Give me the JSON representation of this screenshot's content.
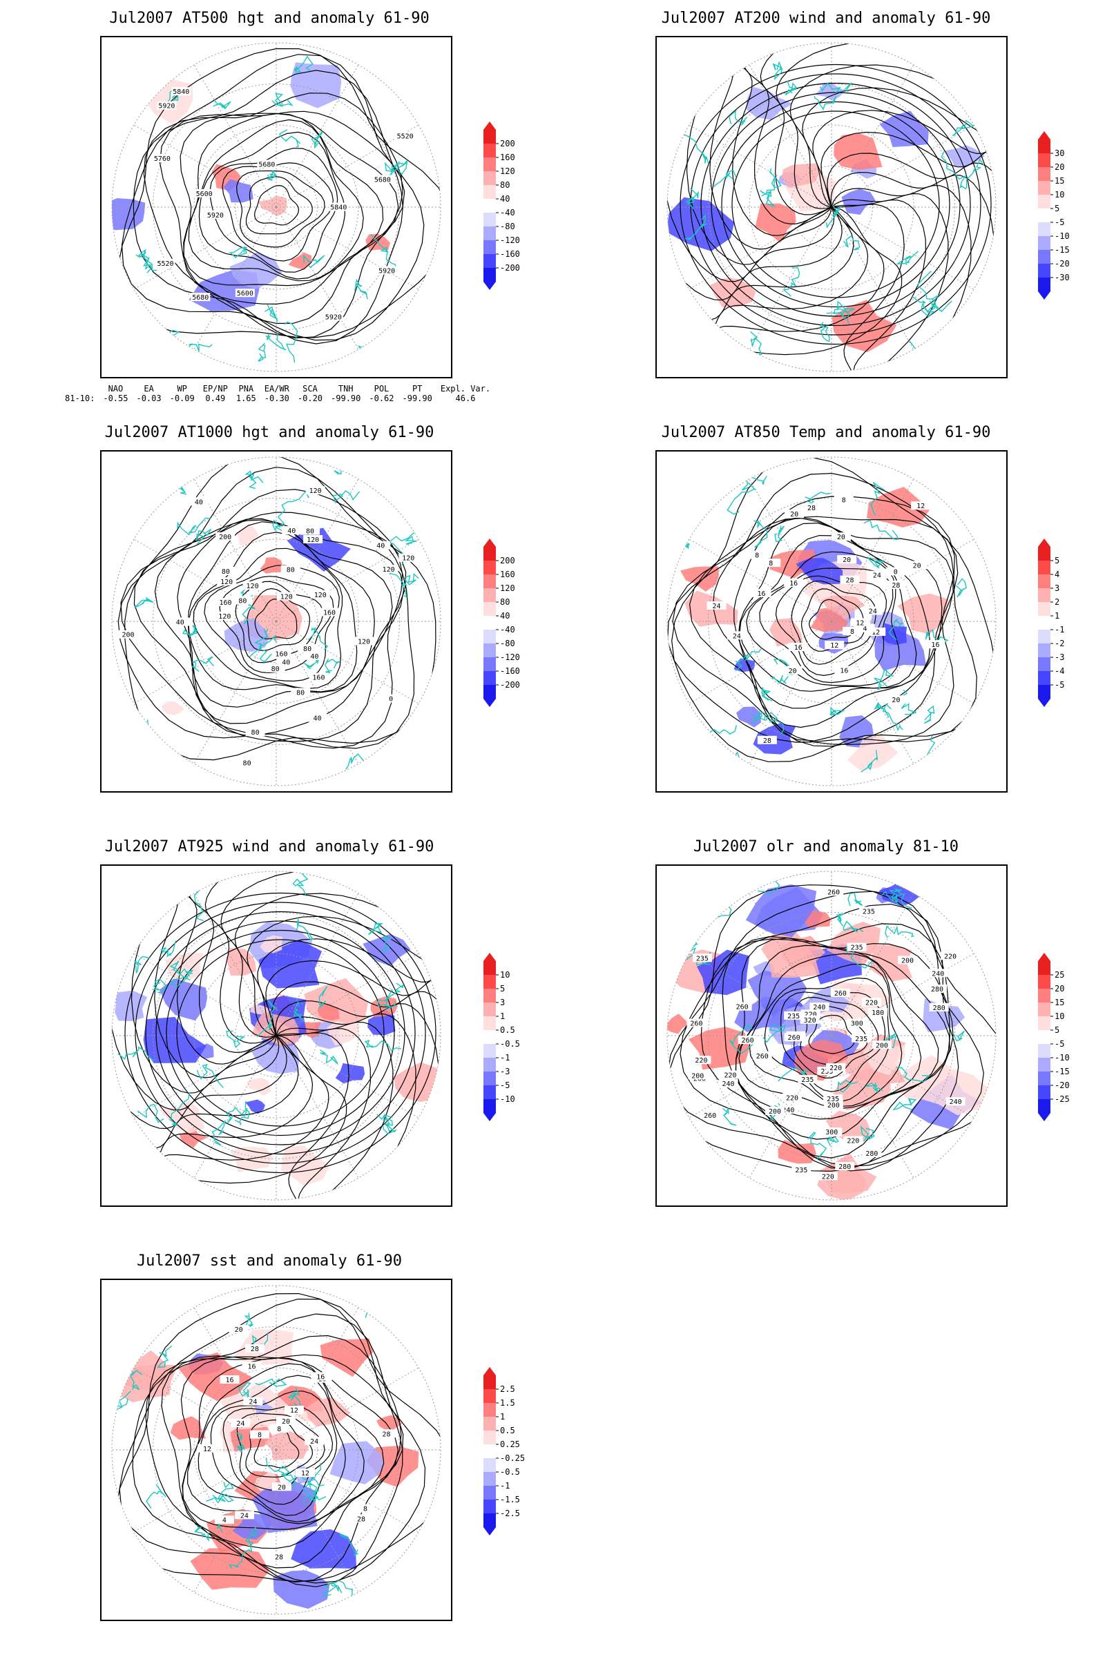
{
  "panels": [
    {
      "id": "p1",
      "title": "Jul2007 AT500 hgt and anomaly 61-90",
      "contour_labels": [
        "5920",
        "5680",
        "5680",
        "5600",
        "5920",
        "5520",
        "5520",
        "5840",
        "5920",
        "5600",
        "5680",
        "5760",
        "5840",
        "5920"
      ],
      "colorbar": {
        "ticks": [
          "200",
          "160",
          "120",
          "80",
          "40",
          "-40",
          "-80",
          "-120",
          "-160",
          "-200"
        ],
        "colors": [
          "#e8201f",
          "#ff4a4a",
          "#ff7e7e",
          "#ffb0b0",
          "#ffdede",
          "#ffffff",
          "#dcdcff",
          "#aaaaff",
          "#7878ff",
          "#4646ff",
          "#1a1aee"
        ]
      }
    },
    {
      "id": "p2",
      "title": "Jul2007 AT200 wind and anomaly 61-90",
      "contour_labels": [],
      "colorbar": {
        "ticks": [
          "30",
          "20",
          "15",
          "10",
          "5",
          "-5",
          "-10",
          "-15",
          "-20",
          "-30"
        ],
        "colors": [
          "#e8201f",
          "#ff4a4a",
          "#ff7e7e",
          "#ffb0b0",
          "#ffdede",
          "#ffffff",
          "#dcdcff",
          "#aaaaff",
          "#7878ff",
          "#4646ff",
          "#1a1aee"
        ]
      }
    },
    {
      "id": "p3",
      "title": "Jul2007 AT1000 hgt and anomaly 61-90",
      "contour_labels": [
        "80",
        "120",
        "120",
        "80",
        "80",
        "160",
        "200",
        "120",
        "160",
        "120",
        "80",
        "40",
        "80",
        "40",
        "120",
        "80",
        "40",
        "40",
        "80",
        "120",
        "160",
        "40",
        "40",
        "120",
        "0",
        "200",
        "160",
        "40",
        "80",
        "120",
        "80",
        "120",
        "120"
      ],
      "colorbar": {
        "ticks": [
          "200",
          "160",
          "120",
          "80",
          "40",
          "-40",
          "-80",
          "-120",
          "-160",
          "-200"
        ],
        "colors": [
          "#e8201f",
          "#ff4a4a",
          "#ff7e7e",
          "#ffb0b0",
          "#ffdede",
          "#ffffff",
          "#dcdcff",
          "#aaaaff",
          "#7878ff",
          "#4646ff",
          "#1a1aee"
        ]
      }
    },
    {
      "id": "p4",
      "title": "Jul2007 AT850 Temp and anomaly 61-90",
      "contour_labels": [
        "16",
        "12",
        "20",
        "8",
        "16",
        "8",
        "20",
        "24",
        "28",
        "8",
        "12",
        "0",
        "28",
        "20",
        "4",
        "12",
        "24",
        "28",
        "20",
        "8",
        "12",
        "16",
        "20",
        "24",
        "28",
        "16",
        "20",
        "24",
        "16"
      ],
      "colorbar": {
        "ticks": [
          "5",
          "4",
          "3",
          "2",
          "1",
          "-1",
          "-2",
          "-3",
          "-4",
          "-5"
        ],
        "colors": [
          "#e8201f",
          "#ff4a4a",
          "#ff7e7e",
          "#ffb0b0",
          "#ffdede",
          "#ffffff",
          "#dcdcff",
          "#aaaaff",
          "#7878ff",
          "#4646ff",
          "#1a1aee"
        ]
      }
    },
    {
      "id": "p5",
      "title": "Jul2007 AT925 wind and anomaly 61-90",
      "contour_labels": [],
      "colorbar": {
        "ticks": [
          "10",
          "5",
          "3",
          "1",
          "0.5",
          "-0.5",
          "-1",
          "-3",
          "-5",
          "-10"
        ],
        "colors": [
          "#e8201f",
          "#ff4a4a",
          "#ff7e7e",
          "#ffb0b0",
          "#ffdede",
          "#ffffff",
          "#dcdcff",
          "#aaaaff",
          "#7878ff",
          "#4646ff",
          "#1a1aee"
        ]
      }
    },
    {
      "id": "p6",
      "title": "Jul2007 olr and anomaly 81-10",
      "contour_labels": [
        "280",
        "260",
        "235",
        "220",
        "280",
        "260",
        "240",
        "200",
        "220",
        "235",
        "240",
        "260",
        "280",
        "260",
        "200",
        "220",
        "235",
        "260",
        "240",
        "220",
        "235",
        "220",
        "200",
        "235",
        "235",
        "260",
        "240",
        "220",
        "200",
        "180",
        "200",
        "220",
        "235",
        "260",
        "280",
        "300",
        "320",
        "220",
        "235",
        "260",
        "240",
        "280",
        "300",
        "260",
        "240",
        "220",
        "235"
      ],
      "colorbar": {
        "ticks": [
          "25",
          "20",
          "15",
          "10",
          "5",
          "-5",
          "-10",
          "-15",
          "-20",
          "-25"
        ],
        "colors": [
          "#e8201f",
          "#ff4a4a",
          "#ff7e7e",
          "#ffb0b0",
          "#ffdede",
          "#ffffff",
          "#dcdcff",
          "#aaaaff",
          "#7878ff",
          "#4646ff",
          "#1a1aee"
        ]
      }
    },
    {
      "id": "p7",
      "title": "Jul2007 sst and anomaly 61-90",
      "contour_labels": [
        "28",
        "28",
        "24",
        "20",
        "16",
        "12",
        "8",
        "28",
        "24",
        "16",
        "12",
        "20",
        "16",
        "8",
        "4",
        "16",
        "12",
        "8",
        "20",
        "24",
        "28",
        "24"
      ],
      "colorbar": {
        "ticks": [
          "2.5",
          "1.5",
          "1",
          "0.5",
          "0.25",
          "-0.25",
          "-0.5",
          "-1",
          "-1.5",
          "-2.5"
        ],
        "colors": [
          "#e8201f",
          "#ff4a4a",
          "#ff7e7e",
          "#ffb0b0",
          "#ffdede",
          "#ffffff",
          "#dcdcff",
          "#aaaaff",
          "#7878ff",
          "#4646ff",
          "#1a1aee"
        ]
      }
    }
  ],
  "teleconnection": {
    "headers": [
      "NAO",
      "EA",
      "WP",
      "EP/NP",
      "PNA",
      "EA/WR",
      "SCA",
      "TNH",
      "POL",
      "PT",
      "Expl. Var."
    ],
    "row_label": "81-10:",
    "values": [
      "-0.55",
      "-0.03",
      "-0.09",
      "0.49",
      "1.65",
      "-0.30",
      "-0.20",
      "-99.90",
      "-0.62",
      "-99.90",
      "46.6"
    ]
  },
  "colors": {
    "coast": "#1cc7c0",
    "contour": "#000000",
    "grid": "#9a9a9a"
  }
}
